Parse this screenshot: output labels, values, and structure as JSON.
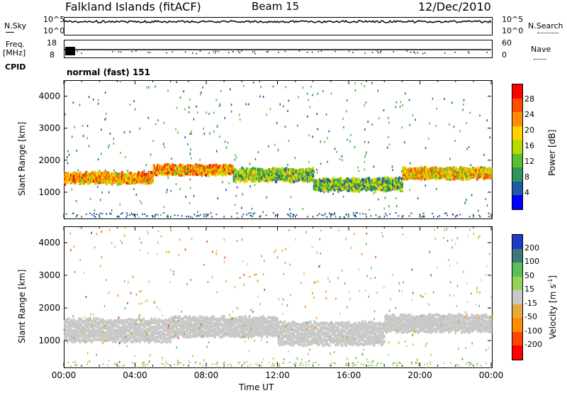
{
  "header": {
    "station": "Falkland Islands (fitACF)",
    "beam": "Beam 15",
    "date": "12/Dec/2010"
  },
  "top_panels": {
    "nsky_label": "N.Sky",
    "nsky_ticks": [
      "10^5",
      "10^0"
    ],
    "nsearch_label": "N.Search",
    "nsearch_ticks": [
      "10^5",
      "10^0"
    ],
    "freq_label": "Freq.",
    "freq_unit": "[MHz]",
    "freq_ticks": [
      "18",
      "8"
    ],
    "nave_label": "Nave",
    "nave_ticks": [
      "60",
      "0"
    ],
    "cpid_label": "CPID",
    "cpid_text": "normal (fast) 151"
  },
  "colorbars": {
    "power": {
      "label": "Power [dB]",
      "ticks": [
        "28",
        "24",
        "20",
        "16",
        "12",
        "8",
        "4"
      ],
      "colors": [
        "#ff0000",
        "#ff4b00",
        "#ff8c00",
        "#ffd200",
        "#b4dc00",
        "#5abe32",
        "#2d965a",
        "#1e5aa0",
        "#0000ff"
      ]
    },
    "velocity": {
      "label": "Velocity [m s",
      "label_sup": "-1",
      "label_end": "]",
      "ticks": [
        "200",
        "100",
        "50",
        "15",
        "-15",
        "-50",
        "-100",
        "-200"
      ],
      "colors": [
        "#1e3cc8",
        "#3c7878",
        "#5abe5a",
        "#96d25a",
        "#c8c8c8",
        "#e6aa3c",
        "#ff8c00",
        "#ff4600",
        "#ff0000"
      ]
    }
  },
  "chart_data": [
    {
      "type": "heatmap",
      "panel": "power",
      "ylabel": "Slant Range [km]",
      "yticks": [
        1000,
        2000,
        3000,
        4000
      ],
      "ylim": [
        200,
        4500
      ],
      "xlim": [
        0,
        24
      ],
      "grid": false,
      "colorscale_min": 0,
      "colorscale_max": 32,
      "bands": [
        {
          "t_start": 0.0,
          "t_end": 5.0,
          "range_center": 1500,
          "range_width": 300,
          "value": 22
        },
        {
          "t_start": 5.0,
          "t_end": 9.5,
          "range_center": 1750,
          "range_width": 250,
          "value": 22
        },
        {
          "t_start": 9.5,
          "t_end": 14.0,
          "range_center": 1600,
          "range_width": 350,
          "value": 14
        },
        {
          "t_start": 14.0,
          "t_end": 19.0,
          "range_center": 1300,
          "range_width": 350,
          "value": 12
        },
        {
          "t_start": 19.0,
          "t_end": 24.0,
          "range_center": 1650,
          "range_width": 300,
          "value": 20
        }
      ]
    },
    {
      "type": "heatmap",
      "panel": "velocity",
      "ylabel": "Slant Range [km]",
      "xlabel": "Time UT",
      "yticks": [
        1000,
        2000,
        3000,
        4000
      ],
      "ylim": [
        200,
        4500
      ],
      "xlim": [
        0,
        24
      ],
      "xticks": [
        "00:00",
        "04:00",
        "08:00",
        "12:00",
        "16:00",
        "20:00",
        "00:00"
      ],
      "grid": false,
      "colorscale_min": -250,
      "colorscale_max": 250,
      "bands": [
        {
          "t_start": 0.0,
          "t_end": 6.0,
          "range_center": 1400,
          "range_width": 700,
          "value": 0
        },
        {
          "t_start": 6.0,
          "t_end": 12.0,
          "range_center": 1500,
          "range_width": 600,
          "value": 0
        },
        {
          "t_start": 12.0,
          "t_end": 18.0,
          "range_center": 1300,
          "range_width": 700,
          "value": 0
        },
        {
          "t_start": 18.0,
          "t_end": 24.0,
          "range_center": 1600,
          "range_width": 500,
          "value": 0
        }
      ]
    }
  ]
}
